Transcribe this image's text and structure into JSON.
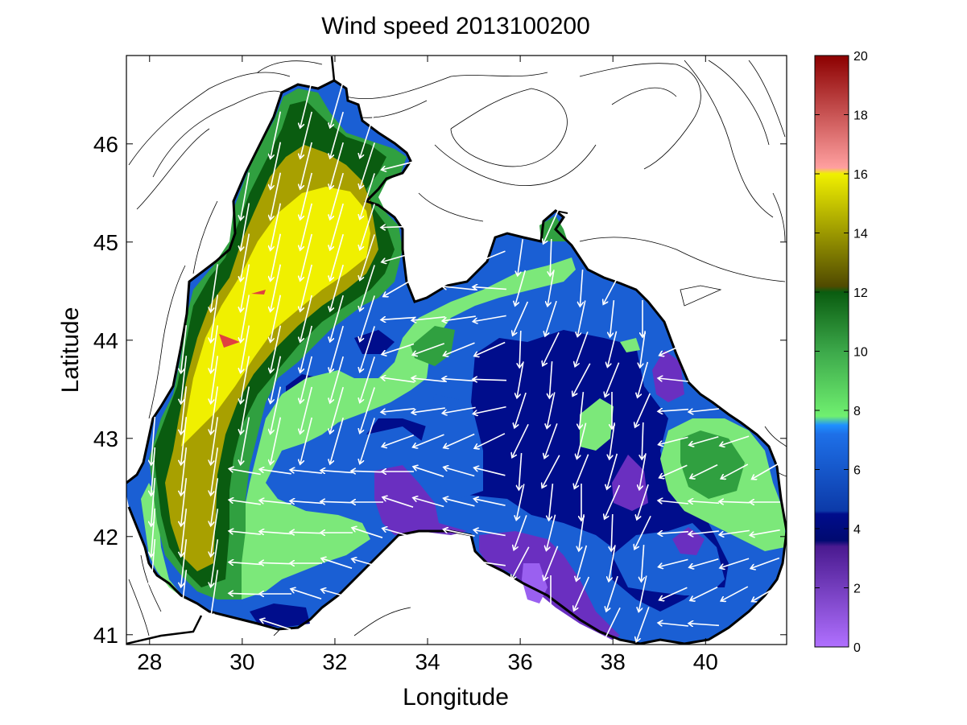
{
  "chart_data": {
    "type": "heatmap",
    "title": "Wind speed 2013100200",
    "xlabel": "Longitude",
    "ylabel": "Latitude",
    "xlim": [
      27.5,
      41.75
    ],
    "ylim": [
      40.9,
      46.9
    ],
    "xticks": [
      "28",
      "30",
      "32",
      "34",
      "36",
      "38",
      "40"
    ],
    "yticks": [
      "41",
      "42",
      "43",
      "44",
      "45",
      "46"
    ],
    "colorbar": {
      "range": [
        0,
        20
      ],
      "ticks": [
        "0",
        "2",
        "4",
        "6",
        "8",
        "10",
        "12",
        "14",
        "16",
        "18",
        "20"
      ],
      "bands": [
        {
          "from": 0,
          "to": 3.5,
          "color": "#6a2fc0"
        },
        {
          "from": 3.5,
          "to": 4.5,
          "color": "#000d8c"
        },
        {
          "from": 4.5,
          "to": 7.5,
          "color": "#1a5fd4"
        },
        {
          "from": 7.5,
          "to": 8.0,
          "color": "#1e90ff"
        },
        {
          "from": 8.0,
          "to": 10.0,
          "color": "#7ce87a"
        },
        {
          "from": 10.0,
          "to": 12.0,
          "color": "#30a040"
        },
        {
          "from": 12.0,
          "to": 14.0,
          "color": "#0a5c10"
        },
        {
          "from": 14.0,
          "to": 16.5,
          "color": "#c8c800"
        },
        {
          "from": 16.5,
          "to": 18.0,
          "color": "#f06060"
        },
        {
          "from": 18.0,
          "to": 20.0,
          "color": "#a00000"
        }
      ]
    },
    "legend": "right",
    "grid": false
  }
}
